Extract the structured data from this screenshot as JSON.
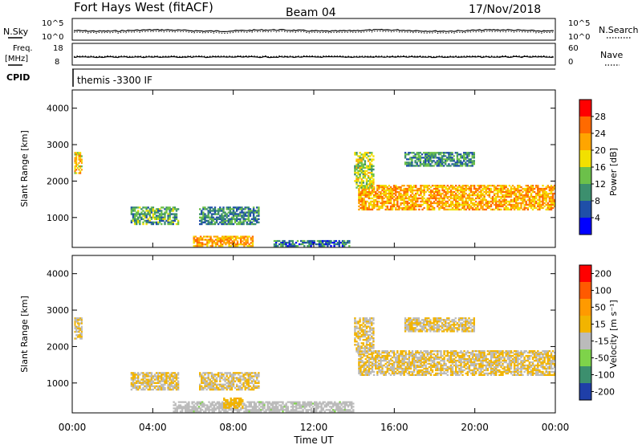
{
  "header": {
    "station": "Fort Hays West (fitACF)",
    "beam": "Beam 04",
    "date": "17/Nov/2018"
  },
  "noise_panel": {
    "left_label": "N.Sky",
    "right_label": "N.Search",
    "left_ticks": [
      "10^5",
      "10^0"
    ],
    "right_ticks": [
      "10^5",
      "10^0"
    ]
  },
  "freq_panel": {
    "left_label_1": "Freq.",
    "left_label_2": "[MHz]",
    "right_label": "Nave",
    "left_ticks": [
      "18",
      "8"
    ],
    "right_ticks": [
      "60",
      "0"
    ]
  },
  "cpid_panel": {
    "label": "CPID",
    "program": "themis -3300 IF"
  },
  "x_axis": {
    "title": "Time UT",
    "ticks": [
      "00:00",
      "04:00",
      "08:00",
      "12:00",
      "16:00",
      "20:00",
      "00:00"
    ]
  },
  "colors": {
    "power": [
      "#0000ff",
      "#1f4fa8",
      "#3c8f6e",
      "#6cc04a",
      "#f2e000",
      "#ffa500",
      "#ff6a00",
      "#ff0000"
    ],
    "velocity": [
      "#ff0000",
      "#ff5a00",
      "#ff9a00",
      "#f2b400",
      "#bbbbbb",
      "#7ed34a",
      "#3c8f6e",
      "#1f3fa8"
    ]
  },
  "chart_data": [
    {
      "type": "heatmap",
      "title": "Power",
      "ylabel": "Slant Range [km]",
      "xlabel": "",
      "x_range_hours": [
        0,
        24
      ],
      "ylim": [
        180,
        4500
      ],
      "y_ticks": [
        "1000",
        "2000",
        "3000",
        "4000"
      ],
      "y_tick_values": [
        1000,
        2000,
        3000,
        4000
      ],
      "colorbar": {
        "label": "Power [dB]",
        "ticks": [
          "28",
          "24",
          "20",
          "16",
          "12",
          "8",
          "4"
        ],
        "range": [
          0,
          32
        ]
      },
      "echo_regions": [
        {
          "t0": 0.1,
          "t1": 0.5,
          "r0": 2200,
          "r1": 2800,
          "value": 20
        },
        {
          "t0": 2.9,
          "t1": 5.3,
          "r0": 800,
          "r1": 1300,
          "value": 12
        },
        {
          "t0": 6.3,
          "t1": 9.3,
          "r0": 800,
          "r1": 1300,
          "value": 10
        },
        {
          "t0": 6.0,
          "t1": 9.0,
          "r0": 200,
          "r1": 500,
          "value": 22
        },
        {
          "t0": 10.0,
          "t1": 13.8,
          "r0": 200,
          "r1": 380,
          "value": 8
        },
        {
          "t0": 14.2,
          "t1": 24.0,
          "r0": 1200,
          "r1": 1900,
          "value": 22
        },
        {
          "t0": 14.0,
          "t1": 15.0,
          "r0": 1800,
          "r1": 2800,
          "value": 16
        },
        {
          "t0": 16.5,
          "t1": 20.0,
          "r0": 2400,
          "r1": 2800,
          "value": 10
        }
      ]
    },
    {
      "type": "heatmap",
      "title": "Velocity",
      "ylabel": "Slant Range [km]",
      "xlabel": "Time UT",
      "x_range_hours": [
        0,
        24
      ],
      "ylim": [
        180,
        4500
      ],
      "y_ticks": [
        "1000",
        "2000",
        "3000",
        "4000"
      ],
      "y_tick_values": [
        1000,
        2000,
        3000,
        4000
      ],
      "colorbar": {
        "label": "Velocity [m s⁻¹]",
        "ticks": [
          "200",
          "100",
          "50",
          "15",
          "-15",
          "-50",
          "-100",
          "-200"
        ],
        "range": [
          -250,
          250
        ]
      },
      "echo_regions": [
        {
          "t0": 0.1,
          "t1": 0.5,
          "r0": 2200,
          "r1": 2800,
          "value": 0
        },
        {
          "t0": 2.9,
          "t1": 5.3,
          "r0": 800,
          "r1": 1300,
          "value": 0
        },
        {
          "t0": 6.3,
          "t1": 9.3,
          "r0": 800,
          "r1": 1300,
          "value": 0
        },
        {
          "t0": 5.0,
          "t1": 14.0,
          "r0": 200,
          "r1": 500,
          "value": -40
        },
        {
          "t0": 7.5,
          "t1": 8.5,
          "r0": 300,
          "r1": 600,
          "value": 40
        },
        {
          "t0": 14.2,
          "t1": 24.0,
          "r0": 1200,
          "r1": 1900,
          "value": 0
        },
        {
          "t0": 14.0,
          "t1": 15.0,
          "r0": 1800,
          "r1": 2800,
          "value": 0
        },
        {
          "t0": 16.5,
          "t1": 20.0,
          "r0": 2400,
          "r1": 2800,
          "value": 0
        }
      ]
    }
  ]
}
